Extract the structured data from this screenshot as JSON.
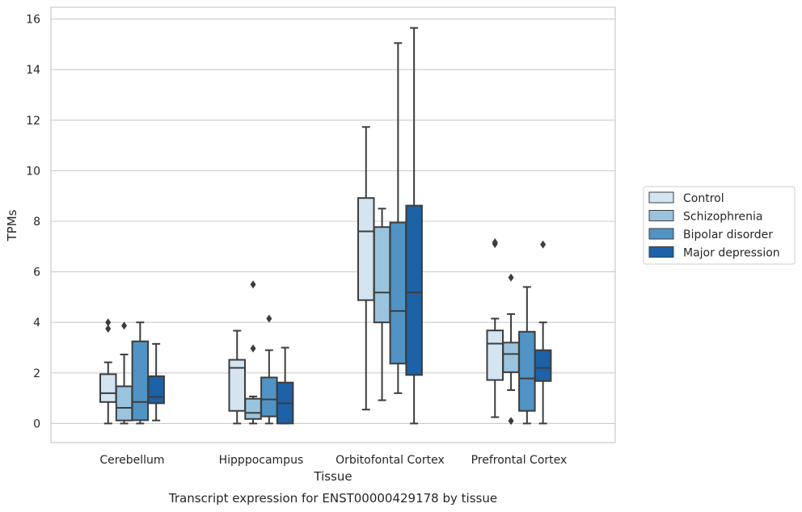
{
  "chart_data": {
    "type": "box",
    "title": "",
    "caption": "Transcript expression for ENST00000429178 by tissue",
    "xlabel": "Tissue",
    "ylabel": "TPMs",
    "ylim": [
      -0.75,
      16.45
    ],
    "yticks": [
      0,
      2,
      4,
      6,
      8,
      10,
      12,
      14,
      16
    ],
    "grid": "horizontal",
    "legend_position": "right",
    "categories": [
      "Cerebellum",
      "Hipppocampus",
      "Orbitofontal Cortex",
      "Prefrontal Cortex"
    ],
    "series": [
      {
        "name": "Control",
        "color": "#d4e4f1",
        "boxes": [
          {
            "whislo": 0.0,
            "q1": 0.85,
            "med": 1.2,
            "q3": 1.95,
            "whishi": 2.42,
            "fliers": [
              3.75,
              4.0
            ]
          },
          {
            "whislo": 0.0,
            "q1": 0.5,
            "med": 2.2,
            "q3": 2.52,
            "whishi": 3.67,
            "fliers": []
          },
          {
            "whislo": 0.55,
            "q1": 4.88,
            "med": 7.6,
            "q3": 8.92,
            "whishi": 11.73,
            "fliers": []
          },
          {
            "whislo": 0.25,
            "q1": 1.72,
            "med": 3.16,
            "q3": 3.68,
            "whishi": 4.15,
            "fliers": [
              7.1,
              7.17
            ]
          }
        ]
      },
      {
        "name": "Schizophrenia",
        "color": "#9ac4de",
        "boxes": [
          {
            "whislo": 0.0,
            "q1": 0.12,
            "med": 0.62,
            "q3": 1.47,
            "whishi": 2.73,
            "fliers": [
              3.87
            ]
          },
          {
            "whislo": 0.0,
            "q1": 0.18,
            "med": 0.42,
            "q3": 0.98,
            "whishi": 1.07,
            "fliers": [
              2.97,
              5.5
            ]
          },
          {
            "whislo": 0.92,
            "q1": 4.0,
            "med": 5.18,
            "q3": 7.77,
            "whishi": 8.5,
            "fliers": []
          },
          {
            "whislo": 1.32,
            "q1": 2.03,
            "med": 2.75,
            "q3": 3.2,
            "whishi": 4.33,
            "fliers": [
              0.1,
              5.77
            ]
          }
        ]
      },
      {
        "name": "Bipolar disorder",
        "color": "#5193c5",
        "boxes": [
          {
            "whislo": 0.0,
            "q1": 0.13,
            "med": 0.85,
            "q3": 3.25,
            "whishi": 4.0,
            "fliers": []
          },
          {
            "whislo": 0.0,
            "q1": 0.28,
            "med": 0.95,
            "q3": 1.82,
            "whishi": 2.9,
            "fliers": [
              4.15
            ]
          },
          {
            "whislo": 1.2,
            "q1": 2.37,
            "med": 4.45,
            "q3": 7.95,
            "whishi": 15.05,
            "fliers": []
          },
          {
            "whislo": 0.0,
            "q1": 0.5,
            "med": 1.78,
            "q3": 3.63,
            "whishi": 5.4,
            "fliers": []
          }
        ]
      },
      {
        "name": "Major depression",
        "color": "#1d61a6",
        "boxes": [
          {
            "whislo": 0.12,
            "q1": 0.8,
            "med": 1.05,
            "q3": 1.87,
            "whishi": 3.15,
            "fliers": []
          },
          {
            "whislo": 0.0,
            "q1": 0.0,
            "med": 0.8,
            "q3": 1.62,
            "whishi": 3.0,
            "fliers": []
          },
          {
            "whislo": 0.0,
            "q1": 1.92,
            "med": 5.18,
            "q3": 8.62,
            "whishi": 15.65,
            "fliers": []
          },
          {
            "whislo": 0.0,
            "q1": 1.68,
            "med": 2.2,
            "q3": 2.9,
            "whishi": 4.0,
            "fliers": [
              7.08
            ]
          }
        ]
      }
    ]
  }
}
